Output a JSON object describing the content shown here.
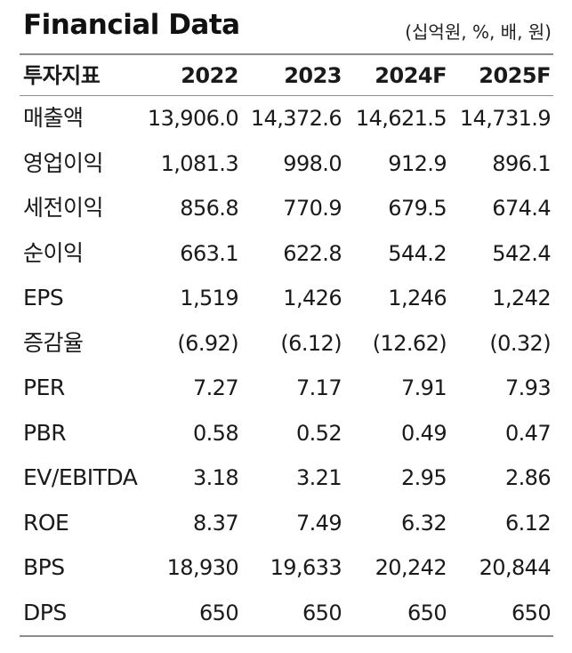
{
  "header": {
    "title": "Financial Data",
    "unit": "(십억원, %, 배, 원)"
  },
  "table": {
    "columns": [
      "투자지표",
      "2022",
      "2023",
      "2024F",
      "2025F"
    ],
    "rows": [
      {
        "label": "매출액",
        "values": [
          "13,906.0",
          "14,372.6",
          "14,621.5",
          "14,731.9"
        ]
      },
      {
        "label": "영업이익",
        "values": [
          "1,081.3",
          "998.0",
          "912.9",
          "896.1"
        ]
      },
      {
        "label": "세전이익",
        "values": [
          "856.8",
          "770.9",
          "679.5",
          "674.4"
        ]
      },
      {
        "label": "순이익",
        "values": [
          "663.1",
          "622.8",
          "544.2",
          "542.4"
        ]
      },
      {
        "label": "EPS",
        "values": [
          "1,519",
          "1,426",
          "1,246",
          "1,242"
        ]
      },
      {
        "label": "증감율",
        "values": [
          "(6.92)",
          "(6.12)",
          "(12.62)",
          "(0.32)"
        ]
      },
      {
        "label": "PER",
        "values": [
          "7.27",
          "7.17",
          "7.91",
          "7.93"
        ]
      },
      {
        "label": "PBR",
        "values": [
          "0.58",
          "0.52",
          "0.49",
          "0.47"
        ]
      },
      {
        "label": "EV/EBITDA",
        "values": [
          "3.18",
          "3.21",
          "2.95",
          "2.86"
        ]
      },
      {
        "label": "ROE",
        "values": [
          "8.37",
          "7.49",
          "6.32",
          "6.12"
        ]
      },
      {
        "label": "BPS",
        "values": [
          "18,930",
          "19,633",
          "20,242",
          "20,844"
        ]
      },
      {
        "label": "DPS",
        "values": [
          "650",
          "650",
          "650",
          "650"
        ]
      }
    ]
  }
}
